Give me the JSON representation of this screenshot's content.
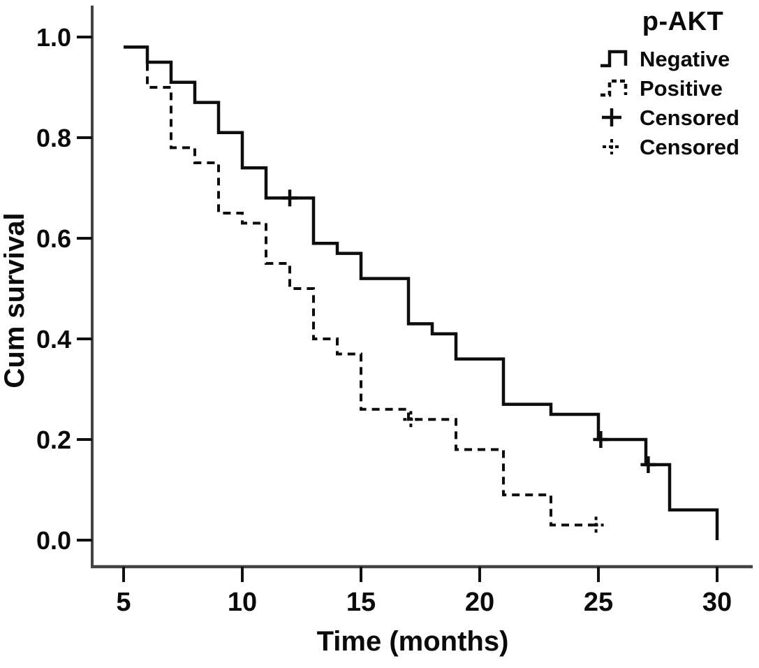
{
  "figure": {
    "background": "#ffffff",
    "curve_color": "#0d0d0d",
    "axis_color": "#444444",
    "text_color": "#0a0a0a"
  },
  "legend": {
    "title": "p-AKT",
    "entries": [
      {
        "label": "Negative",
        "swatch": "solid-step-line"
      },
      {
        "label": "Positive",
        "swatch": "dashed-step-line"
      },
      {
        "label": "Censored",
        "swatch": "solid-plus"
      },
      {
        "label": "Censored",
        "swatch": "dashed-plus"
      }
    ]
  },
  "chart_data": {
    "type": "line",
    "subtype": "kaplan-meier-step",
    "title": "",
    "xlabel": "Time (months)",
    "ylabel": "Cum survival",
    "xticks": [
      5,
      10,
      15,
      20,
      25,
      30
    ],
    "yticks": [
      0.0,
      0.2,
      0.4,
      0.6,
      0.8,
      1.0
    ],
    "xlim": [
      3.7,
      31.5
    ],
    "ylim": [
      -0.05,
      1.06
    ],
    "grid": false,
    "legend_position": "top-right",
    "series": [
      {
        "name": "Negative",
        "style": "solid",
        "points": [
          [
            5,
            0.98
          ],
          [
            6,
            0.95
          ],
          [
            7,
            0.91
          ],
          [
            8,
            0.87
          ],
          [
            9,
            0.81
          ],
          [
            10,
            0.74
          ],
          [
            11,
            0.68
          ],
          [
            13,
            0.59
          ],
          [
            14,
            0.57
          ],
          [
            15,
            0.52
          ],
          [
            17,
            0.43
          ],
          [
            18,
            0.41
          ],
          [
            19,
            0.36
          ],
          [
            21,
            0.27
          ],
          [
            23,
            0.25
          ],
          [
            25,
            0.2
          ],
          [
            27,
            0.15
          ],
          [
            28,
            0.06
          ],
          [
            30,
            0.0
          ]
        ],
        "censored": [
          [
            12,
            0.68
          ],
          [
            25.1,
            0.2
          ],
          [
            27.1,
            0.15
          ]
        ]
      },
      {
        "name": "Positive",
        "style": "dashed",
        "points": [
          [
            5,
            0.98
          ],
          [
            6,
            0.9
          ],
          [
            7,
            0.78
          ],
          [
            8,
            0.75
          ],
          [
            9,
            0.65
          ],
          [
            10,
            0.63
          ],
          [
            11,
            0.55
          ],
          [
            12,
            0.5
          ],
          [
            13,
            0.4
          ],
          [
            14,
            0.37
          ],
          [
            15,
            0.26
          ],
          [
            17,
            0.24
          ],
          [
            19,
            0.18
          ],
          [
            21,
            0.09
          ],
          [
            23,
            0.03
          ]
        ],
        "censored": [
          [
            17.1,
            0.24
          ],
          [
            24.9,
            0.03
          ]
        ],
        "end_t": 25
      }
    ]
  }
}
